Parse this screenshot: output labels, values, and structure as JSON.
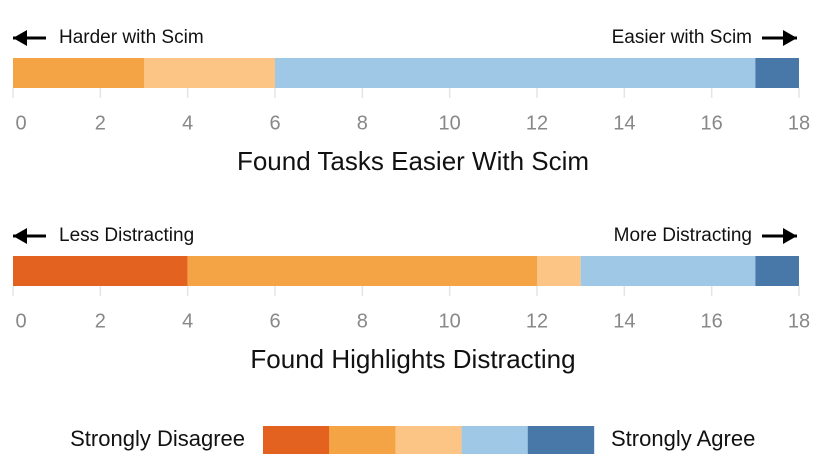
{
  "chart_data": [
    {
      "type": "bar",
      "orientation": "horizontal",
      "stacked": true,
      "title": "Found Tasks Easier With Scim",
      "annotations": {
        "left": "Harder with Scim",
        "right": "Easier with Scim"
      },
      "series": [
        {
          "color": "#e4621f",
          "values": [
            0
          ]
        },
        {
          "color": "#f4a444",
          "values": [
            3
          ]
        },
        {
          "color": "#fdc585",
          "values": [
            3
          ]
        },
        {
          "color": "#9ec8e6",
          "values": [
            11
          ]
        },
        {
          "color": "#4878a8",
          "values": [
            1
          ]
        }
      ],
      "xlim": [
        0,
        18
      ],
      "xticks": [
        0,
        2,
        4,
        6,
        8,
        10,
        12,
        14,
        16,
        18
      ]
    },
    {
      "type": "bar",
      "orientation": "horizontal",
      "stacked": true,
      "title": "Found Highlights Distracting",
      "annotations": {
        "left": "Less Distracting",
        "right": "More Distracting"
      },
      "series": [
        {
          "color": "#e4621f",
          "values": [
            4
          ]
        },
        {
          "color": "#f4a444",
          "values": [
            8
          ]
        },
        {
          "color": "#fdc585",
          "values": [
            1
          ]
        },
        {
          "color": "#9ec8e6",
          "values": [
            4
          ]
        },
        {
          "color": "#4878a8",
          "values": [
            1
          ]
        }
      ],
      "xlim": [
        0,
        18
      ],
      "xticks": [
        0,
        2,
        4,
        6,
        8,
        10,
        12,
        14,
        16,
        18
      ]
    }
  ],
  "legend": {
    "left": "Strongly Disagree",
    "right": "Strongly Agree"
  }
}
